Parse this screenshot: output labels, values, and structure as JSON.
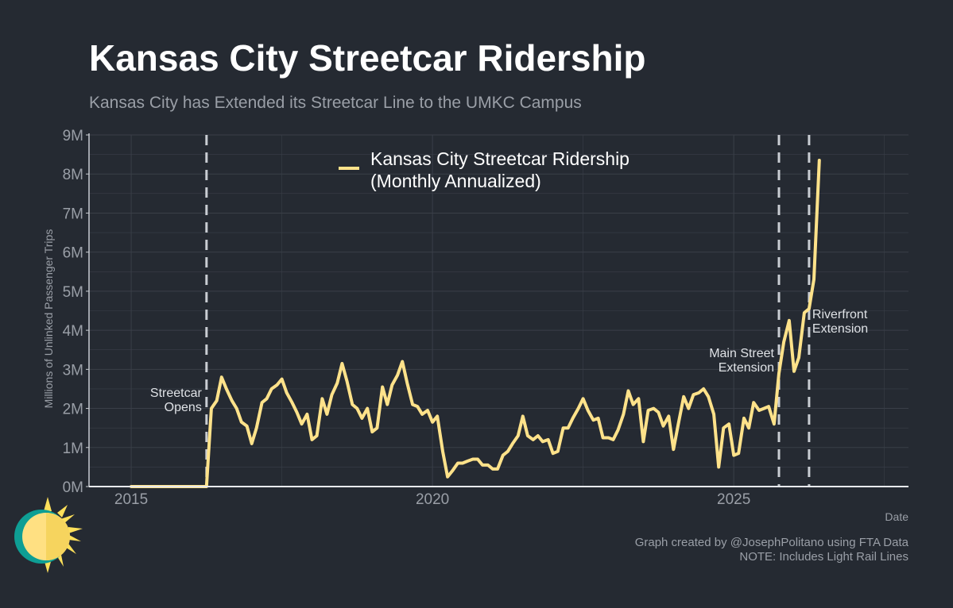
{
  "title": "Kansas City Streetcar Ridership",
  "subtitle": "Kansas City has Extended its Streetcar Line to the UMKC Campus",
  "caption": {
    "line1": "Graph created by @JosephPolitano using FTA Data",
    "line2": "NOTE: Includes Light Rail Lines"
  },
  "colors": {
    "background": "#252a32",
    "line": "#ffe28a",
    "grid": "#3a3f48",
    "vline": "#c9cdd3",
    "text": "#9a9fa7"
  },
  "chart_data": {
    "type": "line",
    "xlabel": "Date",
    "ylabel": "Millions of Unlinked Passenger Trips",
    "xlim": [
      2014.3,
      2027.9
    ],
    "ylim": [
      0,
      9
    ],
    "x_ticks": [
      2015,
      2020,
      2025
    ],
    "x_tick_labels": [
      "2015",
      "2020",
      "2025"
    ],
    "y_ticks": [
      0,
      1,
      2,
      3,
      4,
      5,
      6,
      7,
      8,
      9
    ],
    "y_tick_labels": [
      "0M",
      "1M",
      "2M",
      "3M",
      "4M",
      "5M",
      "6M",
      "7M",
      "8M",
      "9M"
    ],
    "grid": true,
    "legend": {
      "position": "top-center",
      "line1": "Kansas City Streetcar Ridership",
      "line2": "(Monthly Annualized)"
    },
    "series": [
      {
        "name": "Kansas City Streetcar Ridership (Monthly Annualized)",
        "points": [
          [
            2015.0,
            0.0
          ],
          [
            2016.25,
            0.0
          ],
          [
            2016.33,
            2.0
          ],
          [
            2016.42,
            2.2
          ],
          [
            2016.5,
            2.8
          ],
          [
            2016.58,
            2.5
          ],
          [
            2016.67,
            2.2
          ],
          [
            2016.75,
            2.0
          ],
          [
            2016.83,
            1.65
          ],
          [
            2016.92,
            1.55
          ],
          [
            2017.0,
            1.1
          ],
          [
            2017.08,
            1.5
          ],
          [
            2017.17,
            2.15
          ],
          [
            2017.25,
            2.25
          ],
          [
            2017.33,
            2.5
          ],
          [
            2017.42,
            2.6
          ],
          [
            2017.5,
            2.75
          ],
          [
            2017.58,
            2.4
          ],
          [
            2017.67,
            2.15
          ],
          [
            2017.75,
            1.9
          ],
          [
            2017.83,
            1.6
          ],
          [
            2017.92,
            1.85
          ],
          [
            2018.0,
            1.2
          ],
          [
            2018.08,
            1.3
          ],
          [
            2018.17,
            2.25
          ],
          [
            2018.25,
            1.85
          ],
          [
            2018.33,
            2.35
          ],
          [
            2018.42,
            2.65
          ],
          [
            2018.5,
            3.15
          ],
          [
            2018.58,
            2.7
          ],
          [
            2018.67,
            2.1
          ],
          [
            2018.75,
            2.0
          ],
          [
            2018.83,
            1.75
          ],
          [
            2018.92,
            2.0
          ],
          [
            2019.0,
            1.4
          ],
          [
            2019.08,
            1.5
          ],
          [
            2019.17,
            2.55
          ],
          [
            2019.25,
            2.1
          ],
          [
            2019.33,
            2.6
          ],
          [
            2019.42,
            2.85
          ],
          [
            2019.5,
            3.2
          ],
          [
            2019.58,
            2.65
          ],
          [
            2019.67,
            2.1
          ],
          [
            2019.75,
            2.05
          ],
          [
            2019.83,
            1.85
          ],
          [
            2019.92,
            1.95
          ],
          [
            2020.0,
            1.65
          ],
          [
            2020.08,
            1.8
          ],
          [
            2020.17,
            0.9
          ],
          [
            2020.25,
            0.25
          ],
          [
            2020.33,
            0.4
          ],
          [
            2020.42,
            0.6
          ],
          [
            2020.5,
            0.6
          ],
          [
            2020.58,
            0.65
          ],
          [
            2020.67,
            0.7
          ],
          [
            2020.75,
            0.7
          ],
          [
            2020.83,
            0.55
          ],
          [
            2020.92,
            0.55
          ],
          [
            2021.0,
            0.45
          ],
          [
            2021.08,
            0.45
          ],
          [
            2021.17,
            0.8
          ],
          [
            2021.25,
            0.9
          ],
          [
            2021.33,
            1.1
          ],
          [
            2021.42,
            1.3
          ],
          [
            2021.5,
            1.8
          ],
          [
            2021.58,
            1.3
          ],
          [
            2021.67,
            1.2
          ],
          [
            2021.75,
            1.3
          ],
          [
            2021.83,
            1.15
          ],
          [
            2021.92,
            1.2
          ],
          [
            2022.0,
            0.85
          ],
          [
            2022.08,
            0.9
          ],
          [
            2022.17,
            1.5
          ],
          [
            2022.25,
            1.5
          ],
          [
            2022.33,
            1.75
          ],
          [
            2022.42,
            2.0
          ],
          [
            2022.5,
            2.25
          ],
          [
            2022.58,
            1.95
          ],
          [
            2022.67,
            1.7
          ],
          [
            2022.75,
            1.75
          ],
          [
            2022.83,
            1.25
          ],
          [
            2022.92,
            1.25
          ],
          [
            2023.0,
            1.2
          ],
          [
            2023.08,
            1.45
          ],
          [
            2023.17,
            1.85
          ],
          [
            2023.25,
            2.45
          ],
          [
            2023.33,
            2.1
          ],
          [
            2023.42,
            2.25
          ],
          [
            2023.5,
            1.15
          ],
          [
            2023.58,
            1.95
          ],
          [
            2023.67,
            2.0
          ],
          [
            2023.75,
            1.9
          ],
          [
            2023.83,
            1.55
          ],
          [
            2023.92,
            1.8
          ],
          [
            2024.0,
            0.95
          ],
          [
            2024.08,
            1.6
          ],
          [
            2024.17,
            2.3
          ],
          [
            2024.25,
            2.0
          ],
          [
            2024.33,
            2.35
          ],
          [
            2024.42,
            2.4
          ],
          [
            2024.5,
            2.5
          ],
          [
            2024.58,
            2.3
          ],
          [
            2024.67,
            1.85
          ],
          [
            2024.75,
            0.5
          ],
          [
            2024.83,
            1.5
          ],
          [
            2024.92,
            1.6
          ],
          [
            2025.0,
            0.8
          ],
          [
            2025.08,
            0.85
          ],
          [
            2025.17,
            1.75
          ],
          [
            2025.25,
            1.5
          ],
          [
            2025.33,
            2.15
          ],
          [
            2025.42,
            1.95
          ],
          [
            2025.5,
            2.0
          ],
          [
            2025.58,
            2.05
          ],
          [
            2025.67,
            1.6
          ],
          [
            2025.75,
            2.9
          ],
          [
            2025.83,
            3.7
          ],
          [
            2025.92,
            4.25
          ],
          [
            2026.0,
            2.95
          ],
          [
            2026.08,
            3.3
          ],
          [
            2026.17,
            4.45
          ],
          [
            2026.25,
            4.55
          ],
          [
            2026.33,
            5.3
          ],
          [
            2026.42,
            8.35
          ]
        ]
      }
    ],
    "annotations": [
      {
        "x": 2016.25,
        "line1": "Streetcar",
        "line2": "Opens"
      },
      {
        "x": 2025.75,
        "line1": "Main Street",
        "line2": "Extension"
      },
      {
        "x": 2026.25,
        "line1": "Riverfront",
        "line2": "Extension"
      }
    ]
  }
}
